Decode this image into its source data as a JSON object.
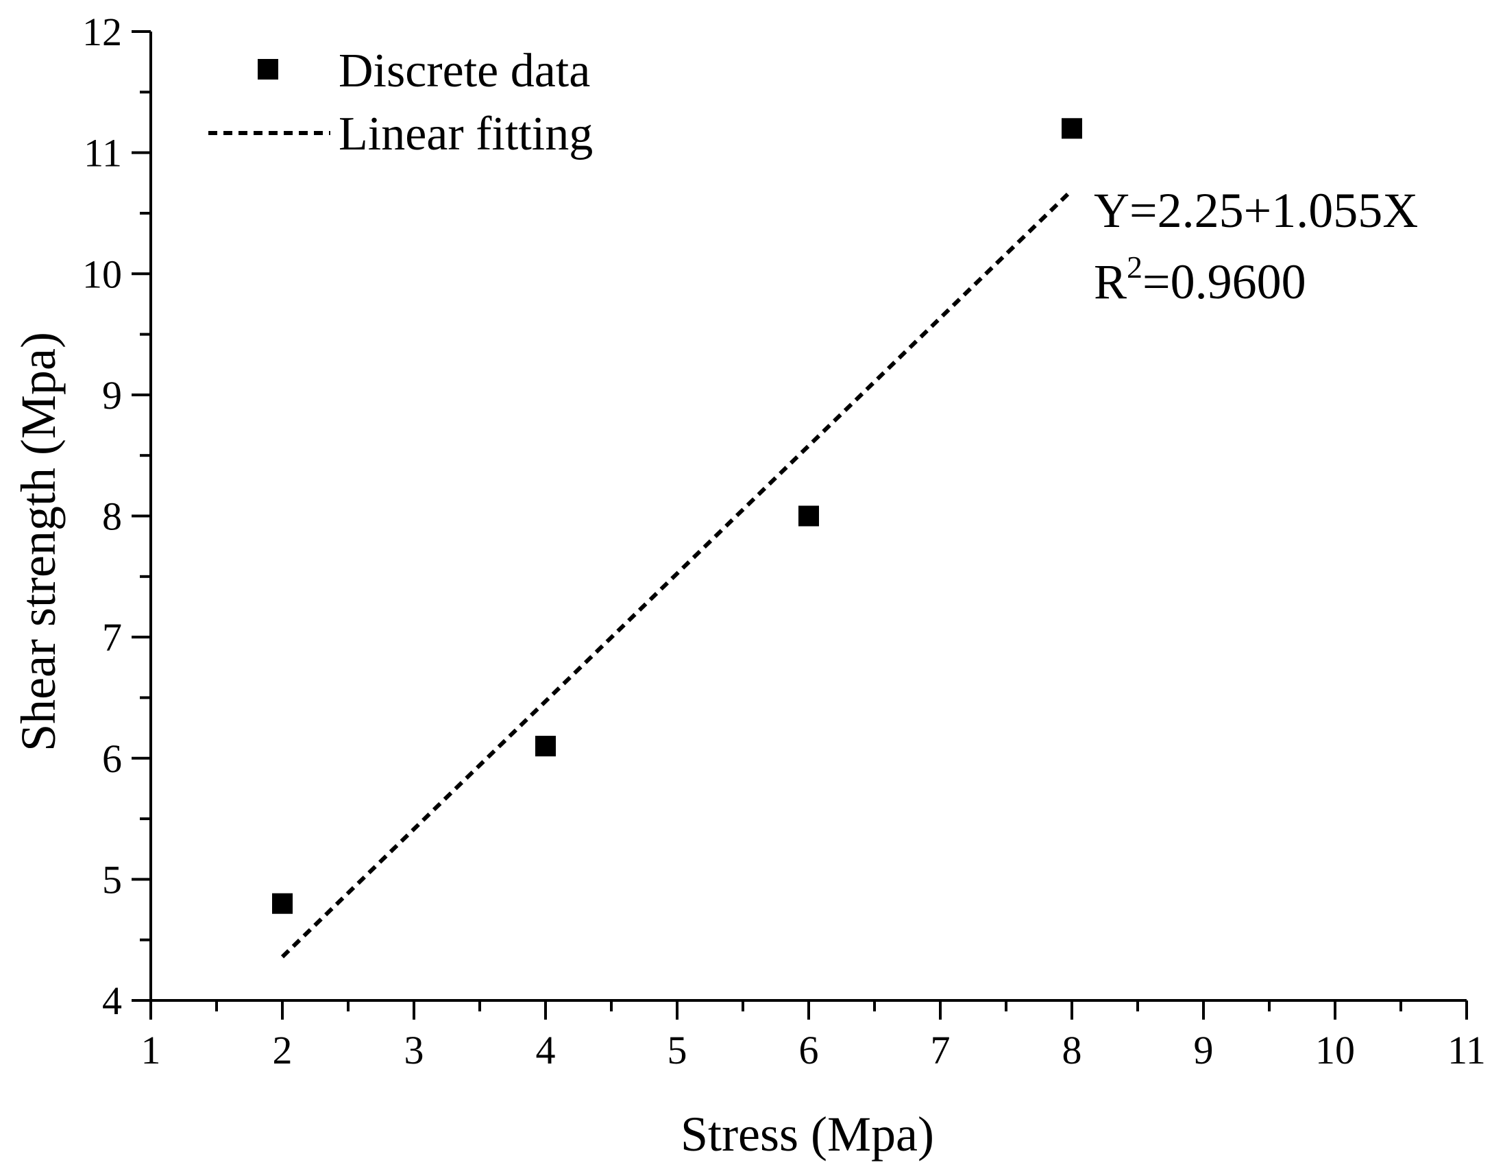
{
  "chart_data": {
    "type": "scatter",
    "title": "",
    "xlabel": "Stress (Mpa)",
    "ylabel": "Shear strength (Mpa)",
    "xlim": [
      1,
      11
    ],
    "ylim": [
      4,
      12
    ],
    "xticks": [
      "1",
      "2",
      "3",
      "4",
      "5",
      "6",
      "7",
      "8",
      "9",
      "10",
      "11"
    ],
    "yticks": [
      "4",
      "5",
      "6",
      "7",
      "8",
      "9",
      "10",
      "11",
      "12"
    ],
    "grid": false,
    "legend_position": "top-left",
    "series": [
      {
        "name": "Discrete data",
        "kind": "scatter",
        "marker": "square",
        "color": "#000000",
        "x": [
          2,
          4,
          6,
          8
        ],
        "y": [
          4.8,
          6.1,
          8.0,
          11.2
        ]
      },
      {
        "name": "Linear fitting",
        "kind": "line",
        "style": "dashed",
        "color": "#000000",
        "x": [
          2,
          8
        ],
        "y": [
          4.36,
          10.69
        ]
      }
    ],
    "annotations": {
      "equation": "Y=2.25+1.055X",
      "r2_prefix": "R",
      "r2_superscript": "2",
      "r2_value": "=0.9600"
    }
  }
}
